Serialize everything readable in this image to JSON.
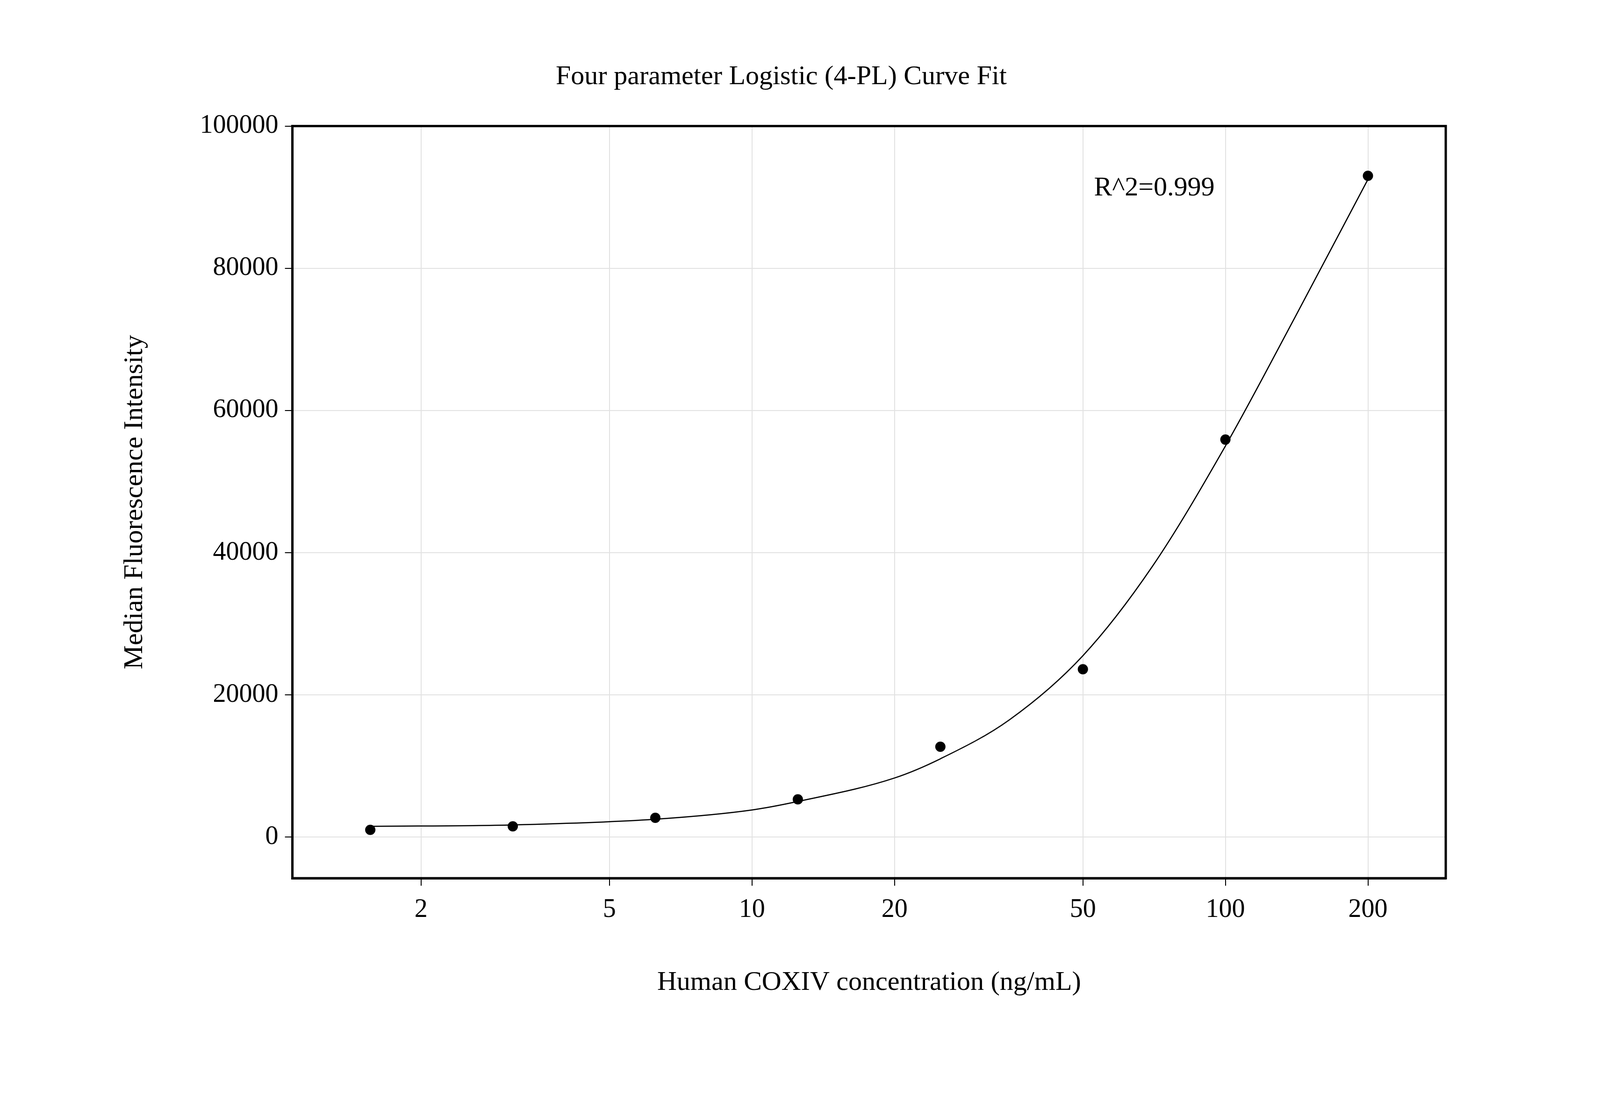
{
  "chart_data": {
    "type": "scatter",
    "title": "Four parameter Logistic (4-PL) Curve Fit",
    "x_label": "Human COXIV concentration (ng/mL)",
    "y_label": "Median Fluorescence Intensity",
    "annotations": [
      {
        "text": "R^2=0.999"
      }
    ],
    "log": "x",
    "grid": true,
    "xlim": [
      1.07,
      292
    ],
    "xticks": [
      2,
      5,
      10,
      20,
      50,
      100,
      200
    ],
    "ylim": [
      -5800,
      100000
    ],
    "yticks": [
      0,
      20000,
      40000,
      60000,
      80000,
      100000
    ],
    "series": [
      {
        "type": "scatter",
        "color": "#000000",
        "marker": "circle",
        "x": [
          1.5625,
          3.125,
          6.25,
          12.5,
          25,
          50,
          100,
          200
        ],
        "values": [
          1000,
          1500,
          2700,
          5300,
          12700,
          23600,
          55900,
          93000
        ]
      },
      {
        "type": "line",
        "color": "#000000",
        "line_style": "solid",
        "x": [
          1.5625,
          3.125,
          6.25,
          10,
          12.5,
          20,
          25,
          35,
          50,
          70,
          100,
          140,
          200
        ],
        "values": [
          1500,
          1700,
          2500,
          3800,
          5000,
          8300,
          11000,
          16500,
          25500,
          38000,
          55000,
          73000,
          92500
        ]
      }
    ]
  }
}
